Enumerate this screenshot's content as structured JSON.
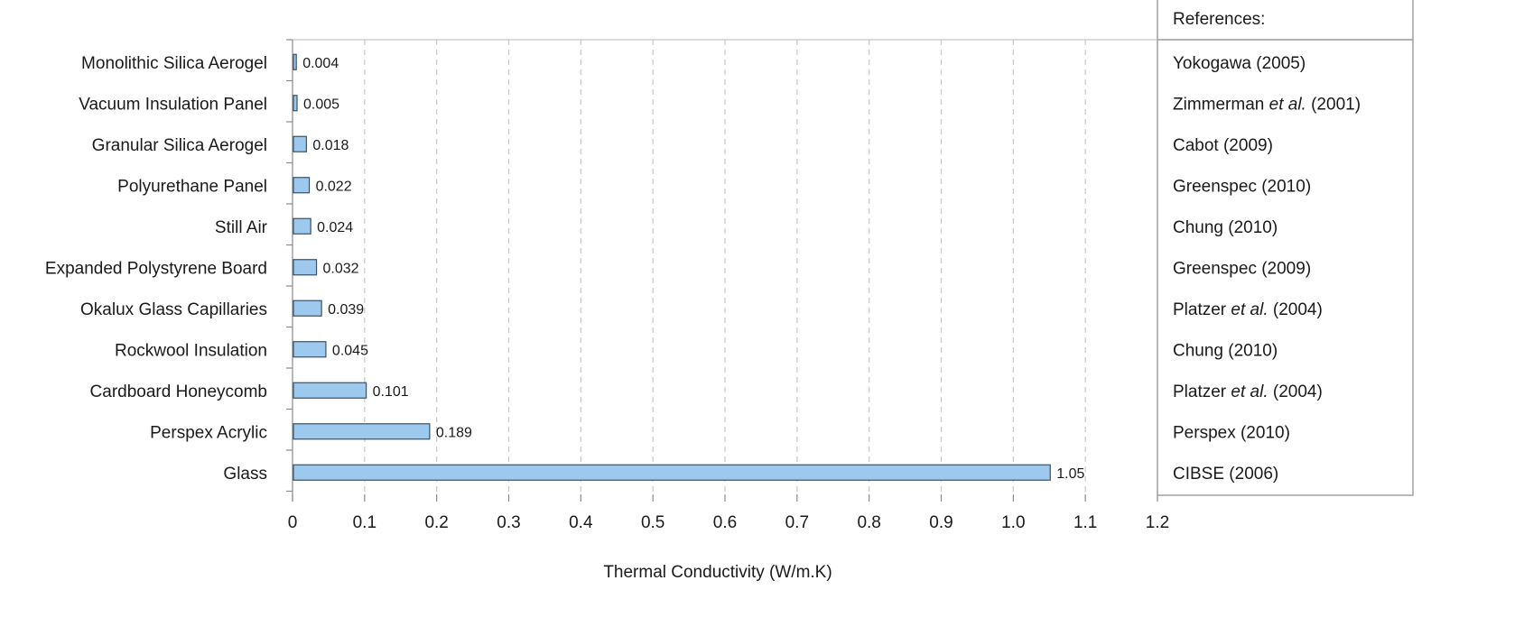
{
  "chart_data": {
    "type": "bar",
    "orientation": "horizontal",
    "title": "",
    "xlabel": "Thermal Conductivity (W/m.K)",
    "ylabel": "",
    "xlim": [
      0,
      1.2
    ],
    "x_ticks": [
      "0",
      "0.1",
      "0.2",
      "0.3",
      "0.4",
      "0.5",
      "0.6",
      "0.7",
      "0.8",
      "0.9",
      "1.0",
      "1.1",
      "1.2"
    ],
    "grid": "vertical dashed",
    "bar_color": "#9ec9ee",
    "bar_edge_color": "#3a5166",
    "categories": [
      "Monolithic Silica Aerogel",
      "Vacuum Insulation Panel",
      "Granular Silica Aerogel",
      "Polyurethane Panel",
      "Still Air",
      "Expanded Polystyrene Board",
      "Okalux Glass Capillaries",
      "Rockwool Insulation",
      "Cardboard Honeycomb",
      "Perspex Acrylic",
      "Glass"
    ],
    "values": [
      0.004,
      0.005,
      0.018,
      0.022,
      0.024,
      0.032,
      0.039,
      0.045,
      0.101,
      0.189,
      1.05
    ],
    "data_labels": [
      "0.004",
      "0.005",
      "0.018",
      "0.022",
      "0.024",
      "0.032",
      "0.039",
      "0.045",
      "0.101",
      "0.189",
      "1.05"
    ]
  },
  "references": {
    "header": "References:",
    "items": [
      [
        "Yokogawa (2005)"
      ],
      [
        "Zimmerman ",
        {
          "i": "et al."
        },
        " (2001)"
      ],
      [
        "Cabot (2009)"
      ],
      [
        "Greenspec (2010)"
      ],
      [
        "Chung (2010)"
      ],
      [
        "Greenspec (2009)"
      ],
      [
        "Platzer ",
        {
          "i": "et al."
        },
        " (2004)"
      ],
      [
        "Chung (2010)"
      ],
      [
        "Platzer ",
        {
          "i": "et al."
        },
        " (2004)"
      ],
      [
        "Perspex (2010)"
      ],
      [
        "CIBSE (2006)"
      ]
    ]
  }
}
